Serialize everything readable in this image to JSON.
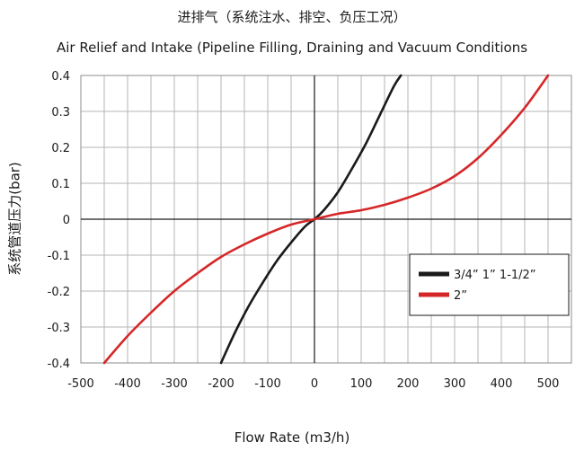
{
  "chart_data": {
    "type": "line",
    "title": "进排气（系统注水、排空、负压工况）",
    "subtitle": "Air Relief and Intake (Pipeline Filling, Draining and Vacuum Conditions",
    "xlabel": "Flow Rate (m3/h)",
    "ylabel": "系统管道压力(bar)",
    "xlim": [
      -500,
      550
    ],
    "ylim": [
      -0.4,
      0.4
    ],
    "xticks": [
      "-500",
      "-400",
      "-300",
      "-200",
      "-100",
      "0",
      "100",
      "200",
      "300",
      "400",
      "500"
    ],
    "yticks": [
      "0.4",
      "0.3",
      "0.2",
      "0.1",
      "0",
      "-0.1",
      "-0.2",
      "-0.3",
      "-0.4"
    ],
    "grid": true,
    "legend_position": "right",
    "series": [
      {
        "name": "3/4”  1”  1-1/2”",
        "color": "#1a1a1a",
        "x": [
          -200,
          -170,
          -140,
          -110,
          -80,
          -50,
          -20,
          0,
          20,
          50,
          80,
          110,
          140,
          170,
          185
        ],
        "y": [
          -0.4,
          -0.315,
          -0.24,
          -0.175,
          -0.115,
          -0.065,
          -0.02,
          0,
          0.025,
          0.075,
          0.14,
          0.21,
          0.29,
          0.37,
          0.4
        ]
      },
      {
        "name": "2”",
        "color": "#d62728",
        "x": [
          -450,
          -400,
          -350,
          -300,
          -250,
          -200,
          -150,
          -100,
          -50,
          0,
          50,
          100,
          150,
          200,
          250,
          300,
          350,
          400,
          450,
          500
        ],
        "y": [
          -0.4,
          -0.325,
          -0.26,
          -0.2,
          -0.15,
          -0.105,
          -0.07,
          -0.04,
          -0.015,
          0,
          0.015,
          0.025,
          0.04,
          0.06,
          0.085,
          0.12,
          0.17,
          0.235,
          0.31,
          0.4
        ]
      }
    ]
  }
}
